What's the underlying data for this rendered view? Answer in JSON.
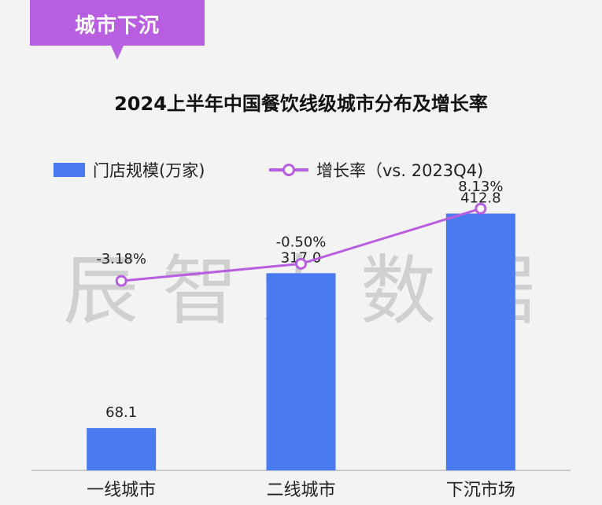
{
  "tag": {
    "label": "城市下沉",
    "color": "#b85ee0"
  },
  "chart_data": {
    "type": "bar",
    "title": "2024上半年中国餐饮线级城市分布及增长率",
    "categories": [
      "一线城市",
      "二线城市",
      "下沉市场"
    ],
    "series": [
      {
        "name": "门店规模(万家)",
        "type": "bar",
        "color": "#4a7af0",
        "values": [
          68.1,
          317.0,
          412.8
        ],
        "labels": [
          "68.1",
          "317.0",
          "412.8"
        ]
      },
      {
        "name": "增长率（vs. 2023Q4)",
        "type": "line",
        "color": "#b85ee0",
        "values": [
          -3.18,
          -0.5,
          8.13
        ],
        "labels": [
          "-3.18%",
          "-0.50%",
          "8.13%"
        ]
      }
    ],
    "ylim": [
      0,
      440
    ],
    "line_ylim": [
      -6,
      10
    ],
    "legend_position": "top",
    "grid": false
  },
  "watermark": "辰智大数据"
}
